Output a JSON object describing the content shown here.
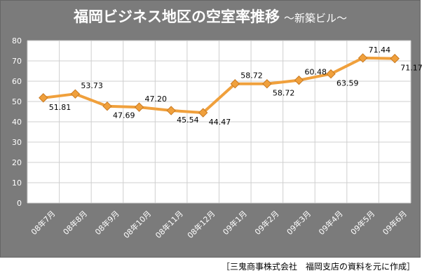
{
  "chart_data": {
    "type": "line",
    "title": "福岡ビジネス地区の空室率推移",
    "subtitle": "～新築ビル～",
    "categories": [
      "08年7月",
      "08年8月",
      "08年9月",
      "08年10月",
      "08年11月",
      "08年12月",
      "09年1月",
      "09年2月",
      "09年3月",
      "09年4月",
      "09年5月",
      "09年6月"
    ],
    "series": [
      {
        "values": [
          51.81,
          53.73,
          47.69,
          47.2,
          45.54,
          44.47,
          58.72,
          58.72,
          60.48,
          63.59,
          71.44,
          71.17
        ]
      }
    ],
    "data_labels": [
      "51.81",
      "53.73",
      "47.69",
      "47.20",
      "45.54",
      "44.47",
      "58.72",
      "58.72",
      "60.48",
      "63.59",
      "71.44",
      "71.17"
    ],
    "ylim": [
      0,
      80
    ],
    "yticks": [
      "0",
      "10",
      "20",
      "30",
      "40",
      "50",
      "60",
      "70",
      "80"
    ],
    "xlabel": "",
    "ylabel": "",
    "grid": true,
    "legend": "none",
    "colors": {
      "frame_background": "#7b7b7b",
      "plot_background": "#ffffff",
      "line": "#f0a03c",
      "marker": "#f0a03c",
      "gridline": "#cfcfcf",
      "title_text": "#ffffff",
      "axis_text": "#ffffff"
    }
  },
  "source_note": "［三鬼商事株式会社　福岡支店の資料を元に作成］"
}
